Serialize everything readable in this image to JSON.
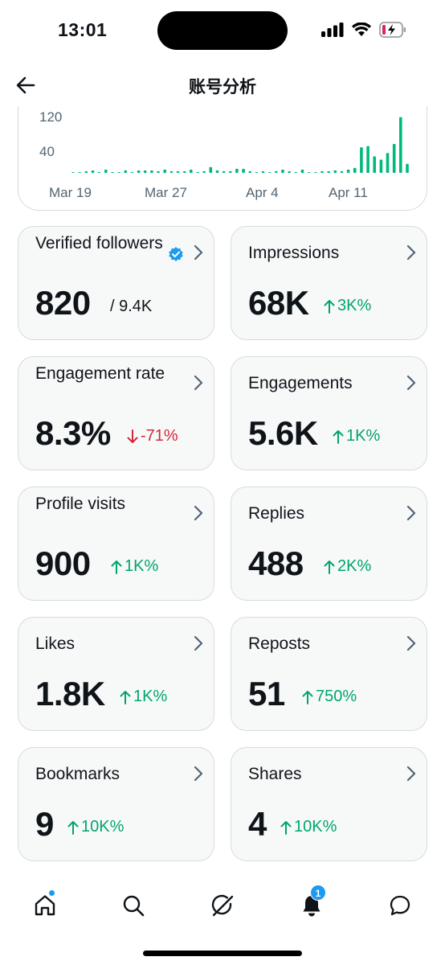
{
  "status_bar": {
    "time": "13:01"
  },
  "header": {
    "title": "账号分析"
  },
  "chart_data": {
    "type": "bar",
    "ytick_labels": [
      "120",
      "40"
    ],
    "xtick_labels": [
      "Mar 19",
      "Mar 27",
      "Apr 4",
      "Apr 11"
    ],
    "values": [
      1,
      2,
      4,
      6,
      1,
      8,
      2,
      2,
      6,
      2,
      6,
      6,
      6,
      4,
      8,
      4,
      4,
      4,
      8,
      2,
      4,
      14,
      6,
      4,
      4,
      10,
      10,
      4,
      1,
      4,
      2,
      4,
      8,
      4,
      2,
      8,
      2,
      2,
      4,
      4,
      6,
      4,
      8,
      12,
      62,
      65,
      40,
      32,
      48,
      70,
      135,
      22
    ],
    "ylim": [
      0,
      140
    ],
    "color": "#00ba7c"
  },
  "metrics": [
    {
      "label": "Verified followers",
      "value": "820",
      "suffix": "/ 9.4K",
      "verified": true
    },
    {
      "label": "Impressions",
      "value": "68K",
      "delta": "3K%",
      "direction": "up"
    },
    {
      "label": "Engagement rate",
      "value": "8.3%",
      "delta": "-71%",
      "direction": "down"
    },
    {
      "label": "Engagements",
      "value": "5.6K",
      "delta": "1K%",
      "direction": "up"
    },
    {
      "label": "Profile visits",
      "value": "900",
      "delta": "1K%",
      "direction": "up"
    },
    {
      "label": "Replies",
      "value": "488",
      "delta": "2K%",
      "direction": "up"
    },
    {
      "label": "Likes",
      "value": "1.8K",
      "delta": "1K%",
      "direction": "up"
    },
    {
      "label": "Reposts",
      "value": "51",
      "delta": "750%",
      "direction": "up"
    },
    {
      "label": "Bookmarks",
      "value": "9",
      "delta": "10K%",
      "direction": "up"
    },
    {
      "label": "Shares",
      "value": "4",
      "delta": "10K%",
      "direction": "up"
    }
  ],
  "tabbar": {
    "items": [
      {
        "icon": "home-icon",
        "dot": true
      },
      {
        "icon": "search-icon"
      },
      {
        "icon": "grok-icon"
      },
      {
        "icon": "bell-icon",
        "badge": "1"
      },
      {
        "icon": "messages-icon"
      }
    ]
  },
  "colors": {
    "up": "#00a56a",
    "down": "#d3263b",
    "accent": "#1d9bf0",
    "bar": "#00ba7c"
  }
}
